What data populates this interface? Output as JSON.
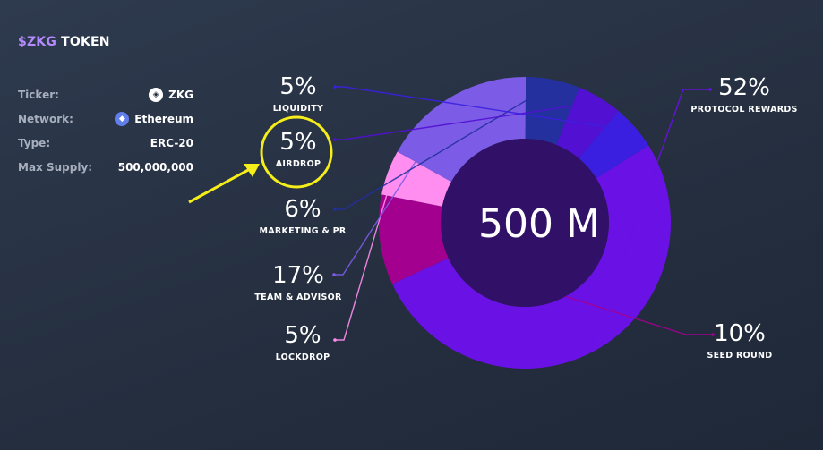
{
  "title": {
    "accent": "$ZKG",
    "rest": "TOKEN"
  },
  "info": [
    {
      "label": "Ticker:",
      "value": "ZKG",
      "icon": "zkg-logo-icon"
    },
    {
      "label": "Network:",
      "value": "Ethereum",
      "icon": "ethereum-icon"
    },
    {
      "label": "Type:",
      "value": "ERC-20"
    },
    {
      "label": "Max Supply:",
      "value": "500,000,000"
    }
  ],
  "chart_data": {
    "type": "pie",
    "center_label": "500 M",
    "slices": [
      {
        "name": "PROTOCOL REWARDS",
        "value": 52,
        "label": "52%",
        "color": "#6a11e6"
      },
      {
        "name": "SEED ROUND",
        "value": 10,
        "label": "10%",
        "color": "#a4008f"
      },
      {
        "name": "LOCKDROP",
        "value": 5,
        "label": "5%",
        "color": "#ff8ef0"
      },
      {
        "name": "TEAM & ADVISOR",
        "value": 17,
        "label": "17%",
        "color": "#7c5ce6"
      },
      {
        "name": "MARKETING & PR",
        "value": 6,
        "label": "6%",
        "color": "#24309e"
      },
      {
        "name": "AIRDROP",
        "value": 5,
        "label": "5%",
        "color": "#5210d2"
      },
      {
        "name": "LIQUIDITY",
        "value": 5,
        "label": "5%",
        "color": "#3b1fe0"
      }
    ]
  },
  "annotation": {
    "highlight": "AIRDROP",
    "color": "#f6ee1a",
    "shapes": [
      "circle",
      "arrow"
    ]
  }
}
